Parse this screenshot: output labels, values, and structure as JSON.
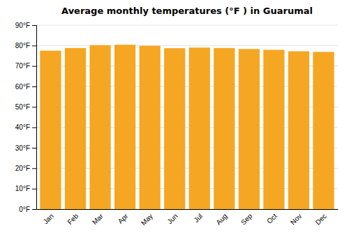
{
  "chart_data": {
    "type": "bar",
    "title": "Average monthly temperatures (°F ) in Guarumal",
    "categories": [
      "Jan",
      "Feb",
      "Mar",
      "Apr",
      "May",
      "Jun",
      "Jul",
      "Aug",
      "Sep",
      "Oct",
      "Nov",
      "Dec"
    ],
    "values": [
      77.5,
      78.8,
      80.2,
      80.4,
      79.9,
      78.7,
      79.0,
      78.8,
      78.3,
      77.9,
      77.2,
      76.9
    ],
    "color": "#F5A623",
    "ylim": [
      0,
      90
    ],
    "yticks": [
      {
        "value": 0,
        "label": "0°F"
      },
      {
        "value": 10,
        "label": "10°F"
      },
      {
        "value": 20,
        "label": "20°F"
      },
      {
        "value": 30,
        "label": "30°F"
      },
      {
        "value": 40,
        "label": "40°F"
      },
      {
        "value": 50,
        "label": "50°F"
      },
      {
        "value": 60,
        "label": "60°F"
      },
      {
        "value": 70,
        "label": "70°F"
      },
      {
        "value": 80,
        "label": "80°F"
      },
      {
        "value": 90,
        "label": "90°F"
      }
    ],
    "grid": true
  }
}
